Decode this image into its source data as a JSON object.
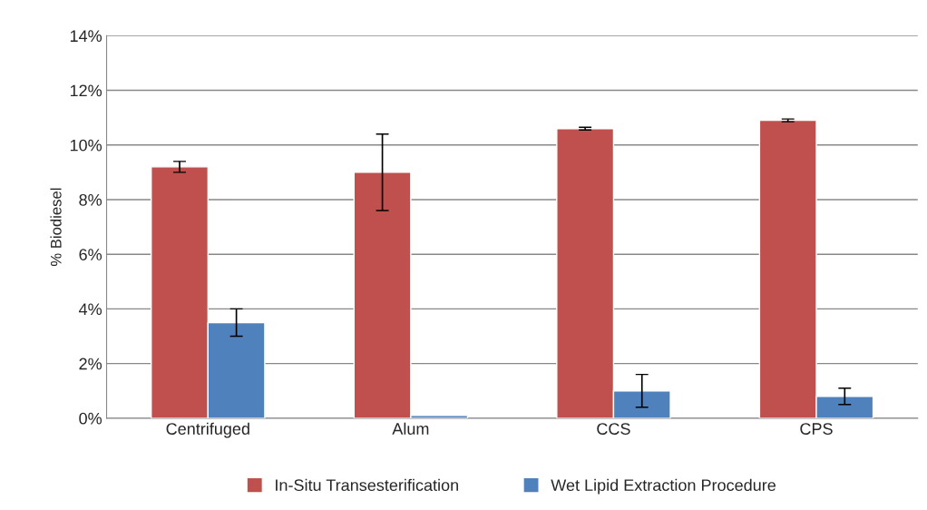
{
  "chart_data": {
    "type": "bar",
    "ylabel": "% Biodiesel",
    "categories": [
      "Centrifuged",
      "Alum",
      "CCS",
      "CPS"
    ],
    "series": [
      {
        "name": "In-Situ Transesterification",
        "color": "#c0504d",
        "values": [
          9.2,
          9.0,
          10.6,
          10.9
        ],
        "errors": [
          0.2,
          1.4,
          0.05,
          0.05
        ]
      },
      {
        "name": "Wet Lipid Extraction Procedure",
        "color": "#4f81bd",
        "values": [
          3.5,
          0.1,
          1.0,
          0.8
        ],
        "errors": [
          0.5,
          null,
          0.6,
          0.3
        ]
      }
    ],
    "ylim": [
      0,
      14
    ],
    "yticks": [
      {
        "value": 0,
        "label": "0%"
      },
      {
        "value": 2,
        "label": "2%"
      },
      {
        "value": 4,
        "label": "4%"
      },
      {
        "value": 6,
        "label": "6%"
      },
      {
        "value": 8,
        "label": "8%"
      },
      {
        "value": 10,
        "label": "10%"
      },
      {
        "value": 12,
        "label": "12%"
      },
      {
        "value": 14,
        "label": "14%"
      }
    ],
    "grid": "y",
    "legend": "bottom"
  }
}
